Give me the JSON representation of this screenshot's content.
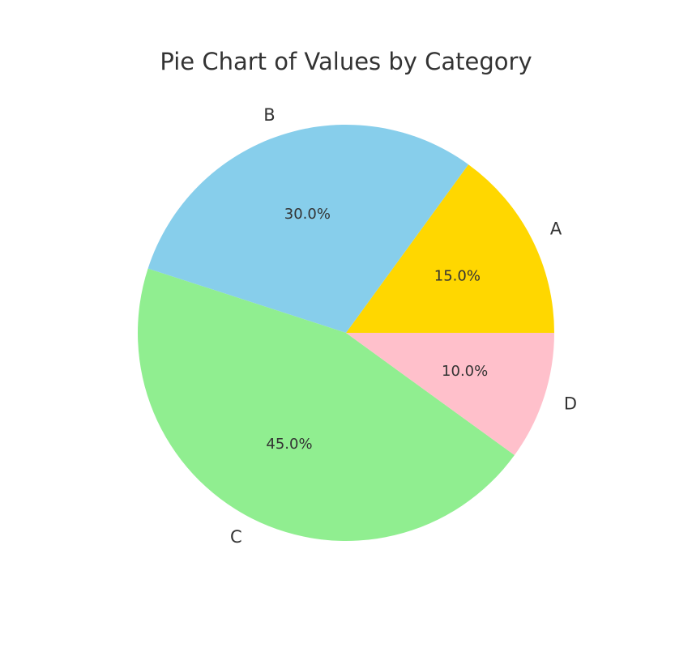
{
  "chart_data": {
    "type": "pie",
    "title": "Pie Chart of Values by Category",
    "categories": [
      "A",
      "B",
      "C",
      "D"
    ],
    "values": [
      15,
      30,
      45,
      10
    ],
    "percent_labels": [
      "15.0%",
      "30.0%",
      "45.0%",
      "10.0%"
    ],
    "colors": [
      "#FFD700",
      "#87CEEB",
      "#90EE90",
      "#FFC0CB"
    ],
    "start_angle_deg": 0,
    "direction": "counterclockwise",
    "legend": "none"
  }
}
